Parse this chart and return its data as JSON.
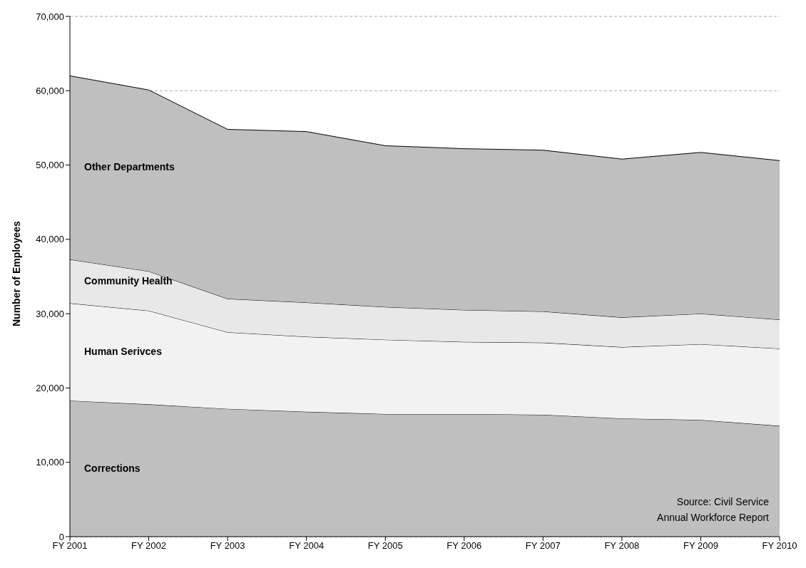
{
  "chart_data": {
    "type": "area",
    "stacked": true,
    "ylabel": "Number of Employees",
    "categories": [
      "FY 2001",
      "FY 2002",
      "FY 2003",
      "FY 2004",
      "FY 2005",
      "FY 2006",
      "FY 2007",
      "FY 2008",
      "FY 2009",
      "FY 2010"
    ],
    "series": [
      {
        "name": "Corrections",
        "color": "#bfbfbf",
        "values": [
          18300,
          17800,
          17200,
          16800,
          16500,
          16500,
          16400,
          15900,
          15700,
          14900
        ]
      },
      {
        "name": "Human Serivces",
        "color": "#f2f2f2",
        "values": [
          13100,
          12600,
          10300,
          10100,
          10000,
          9700,
          9700,
          9600,
          10200,
          10400
        ]
      },
      {
        "name": "Community Health",
        "color": "#e8e8e8",
        "values": [
          5900,
          5300,
          4500,
          4600,
          4400,
          4300,
          4200,
          4000,
          4100,
          3900
        ]
      },
      {
        "name": "Other Departments",
        "color": "#bfbfbf",
        "values": [
          24700,
          24400,
          22800,
          23000,
          21700,
          21700,
          21700,
          21300,
          21700,
          21400
        ]
      }
    ],
    "ylim": [
      0,
      70000
    ],
    "yticks": [
      0,
      {
        "value": 10000,
        "label": "10,000"
      },
      {
        "value": 20000,
        "label": "20,000"
      },
      {
        "value": 30000,
        "label": "30,000"
      },
      {
        "value": 40000,
        "label": "40,000"
      },
      {
        "value": 50000,
        "label": "50,000"
      },
      {
        "value": 60000,
        "label": "60,000"
      },
      {
        "value": 70000,
        "label": "70,000"
      }
    ],
    "grid": "y",
    "legend": false,
    "annotations": [
      "Source: Civil Service\nAnnual Workforce Report"
    ]
  }
}
